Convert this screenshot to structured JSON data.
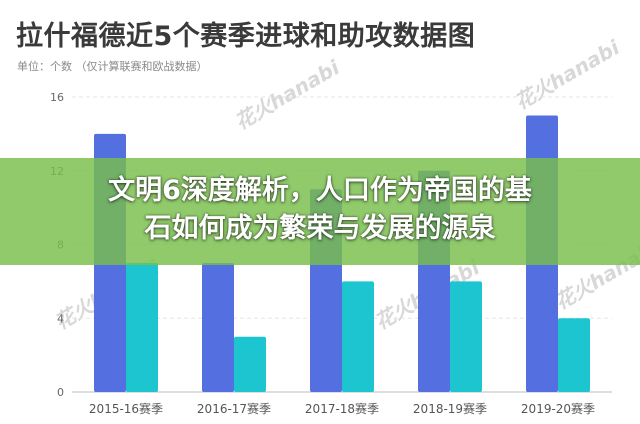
{
  "header": {
    "title": "拉什福德近5个赛季进球和助攻数据图",
    "subtitle": "单位：个数 （仅计算联赛和欧战数据）"
  },
  "banner": {
    "line1": "文明6深度解析，人口作为帝国的基",
    "line2": "石如何成为繁荣与发展的源泉",
    "color": "#78be4b"
  },
  "watermark": "花火hanabi",
  "chart_data": {
    "type": "bar",
    "title": "拉什福德近5个赛季进球和助攻数据图",
    "subtitle": "单位：个数 （仅计算联赛和欧战数据）",
    "categories": [
      "2015-16赛季",
      "2016-17赛季",
      "2017-18赛季",
      "2018-19赛季",
      "2019-20赛季"
    ],
    "series": [
      {
        "values": [
          14,
          7,
          11,
          12,
          15
        ],
        "color": "#5470e0"
      },
      {
        "values": [
          7,
          3,
          6,
          6,
          4
        ],
        "color": "#1cc5cf"
      }
    ],
    "yticks": [
      0,
      4,
      8,
      12,
      16
    ],
    "ylim": [
      0,
      16
    ],
    "grid": true,
    "legend": "none"
  }
}
